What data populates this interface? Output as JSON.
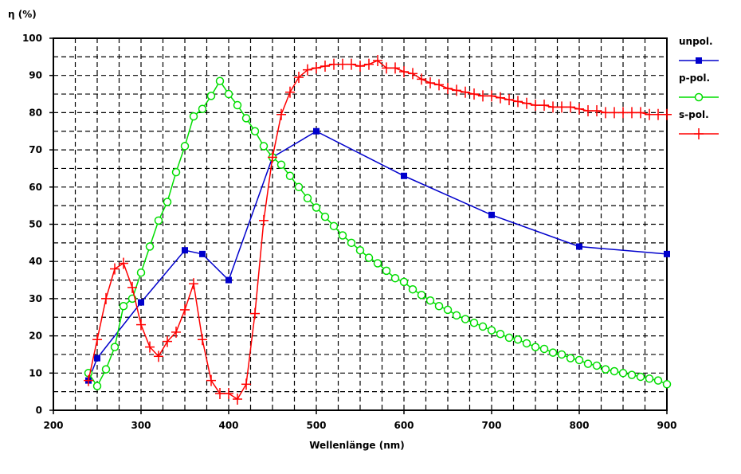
{
  "chart_data": {
    "type": "line",
    "ylabel": "η (%)",
    "xlabel": "Wellenlänge (nm)",
    "xlim": [
      200,
      900
    ],
    "ylim": [
      0,
      100
    ],
    "xticks": [
      200,
      300,
      400,
      500,
      600,
      700,
      800,
      900
    ],
    "yticks": [
      0,
      10,
      20,
      30,
      40,
      50,
      60,
      70,
      80,
      90,
      100
    ],
    "grid": true,
    "legend_position": "right",
    "series": [
      {
        "name": "unpol.",
        "color": "#0000cc",
        "marker": "square",
        "x": [
          240,
          250,
          300,
          350,
          370,
          400,
          450,
          500,
          600,
          700,
          800,
          900
        ],
        "y": [
          8,
          14,
          29,
          43,
          42,
          35,
          68,
          75,
          63,
          52.5,
          44,
          42
        ]
      },
      {
        "name": "p-pol.",
        "color": "#00dd00",
        "marker": "circle",
        "x": [
          240,
          250,
          260,
          270,
          280,
          290,
          300,
          310,
          320,
          330,
          340,
          350,
          360,
          370,
          380,
          390,
          400,
          410,
          420,
          430,
          440,
          450,
          460,
          470,
          480,
          490,
          500,
          510,
          520,
          530,
          540,
          550,
          560,
          570,
          580,
          590,
          600,
          610,
          620,
          630,
          640,
          650,
          660,
          670,
          680,
          690,
          700,
          710,
          720,
          730,
          740,
          750,
          760,
          770,
          780,
          790,
          800,
          810,
          820,
          830,
          840,
          850,
          860,
          870,
          880,
          890,
          900
        ],
        "y": [
          10,
          6.5,
          11,
          17,
          28,
          30,
          37,
          44,
          51,
          56,
          64,
          71,
          79,
          81,
          84.5,
          88.5,
          85,
          82,
          78.5,
          75,
          71,
          68,
          66,
          63,
          60,
          57,
          54.5,
          52,
          49.5,
          47,
          45,
          43,
          41,
          39.5,
          37.5,
          35.5,
          34.5,
          32.5,
          31,
          29.5,
          28,
          27,
          25.5,
          24.5,
          23.5,
          22.5,
          21.5,
          20.5,
          19.5,
          19,
          18,
          17,
          16.5,
          15.5,
          15,
          14,
          13.5,
          12.5,
          12,
          11,
          10.5,
          10,
          9.5,
          9,
          8.5,
          8,
          7
        ]
      },
      {
        "name": "s-pol.",
        "color": "#ff0000",
        "marker": "plus",
        "x": [
          240,
          250,
          260,
          270,
          280,
          290,
          300,
          310,
          320,
          330,
          340,
          350,
          360,
          370,
          380,
          390,
          400,
          410,
          420,
          430,
          440,
          450,
          460,
          470,
          480,
          490,
          500,
          510,
          520,
          530,
          540,
          550,
          560,
          570,
          580,
          590,
          600,
          610,
          620,
          630,
          640,
          650,
          660,
          670,
          680,
          690,
          700,
          710,
          720,
          730,
          740,
          750,
          760,
          770,
          780,
          790,
          800,
          810,
          820,
          830,
          840,
          850,
          860,
          870,
          880,
          890,
          900
        ],
        "y": [
          8,
          19,
          30,
          38,
          39.5,
          33,
          23,
          17,
          14.5,
          18.5,
          21,
          27,
          34,
          19,
          8,
          4.5,
          4.5,
          3,
          7,
          26,
          51,
          68,
          79.5,
          85.5,
          89.5,
          91.5,
          92,
          92.5,
          93,
          93,
          93,
          92.5,
          93,
          94,
          92,
          92,
          91,
          90.5,
          89,
          88,
          87.5,
          86.5,
          86,
          85.5,
          85,
          84.5,
          84.5,
          84,
          83.5,
          83,
          82.5,
          82,
          82,
          81.5,
          81.5,
          81.5,
          81,
          80.5,
          80.5,
          80,
          80,
          80,
          80,
          80,
          79.5,
          79.5,
          79.5
        ]
      }
    ]
  }
}
